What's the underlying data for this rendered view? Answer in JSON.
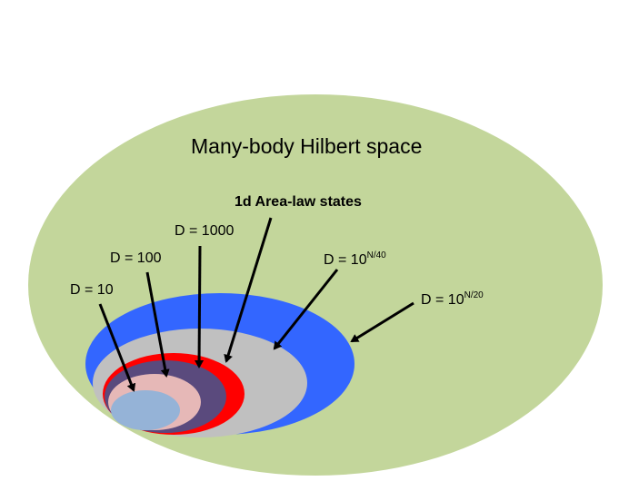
{
  "diagram": {
    "title": "Many-body Hilbert space",
    "area_law_label": "1d Area-law states",
    "labels": {
      "d10": "D = 10",
      "d100": "D = 100",
      "d1000": "D = 1000",
      "d40_base": "D = 10",
      "d40_exp": "N/40",
      "d20_base": "D = 10",
      "d20_exp": "N/20"
    },
    "colors": {
      "hilbert_space": "#c3d69b",
      "d_10_n20": "#3366ff",
      "d_10_n40": "#c0c0c0",
      "area_law": "#ff0000",
      "d1000": "#5a4a7d",
      "d100": "#e6b8b7",
      "d10": "#95b3d7",
      "arrows": "#000000"
    }
  }
}
